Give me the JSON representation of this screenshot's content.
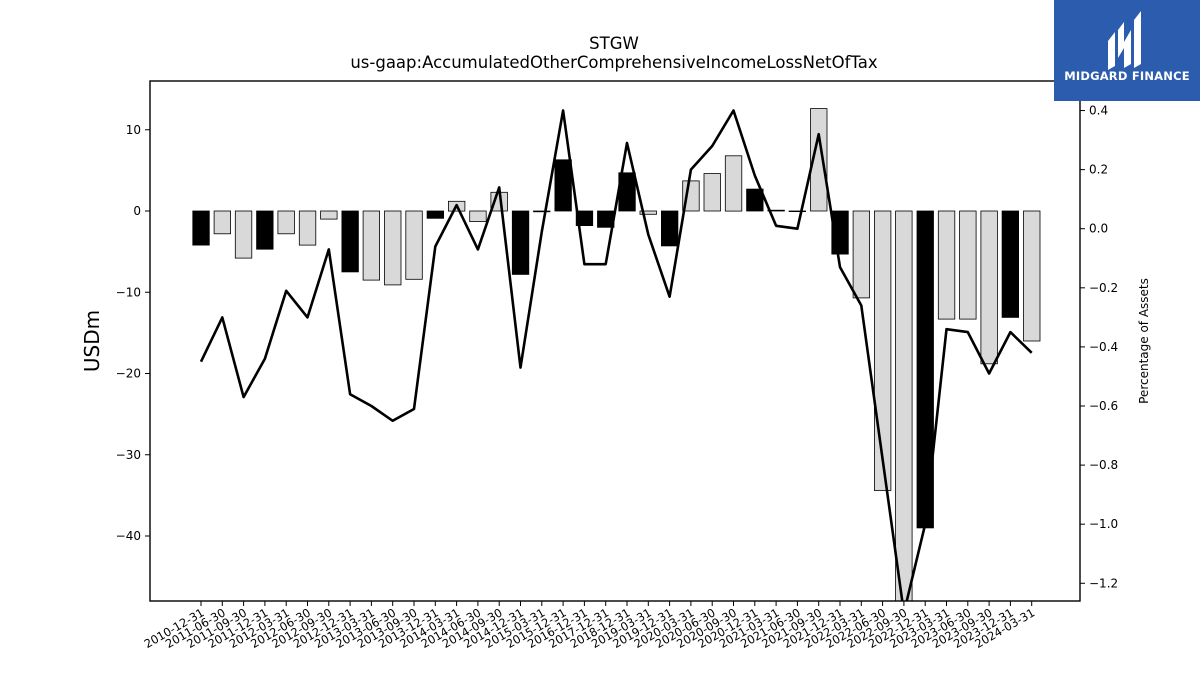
{
  "brand": {
    "name": "MIDGARD FINANCE",
    "background_color": "#2b5cad",
    "icon": "midgard-m-logo-icon"
  },
  "chart_data": {
    "type": "bar",
    "title": "STGW",
    "subtitle": "us-gaap:AccumulatedOtherComprehensiveIncomeLossNetOfTax",
    "ylabel": "USDm",
    "y2label": "Percentage of Assets",
    "ylim": [
      -48,
      16
    ],
    "y2lim": [
      -1.26,
      0.5
    ],
    "yticks": [
      10,
      0,
      -10,
      -20,
      -30,
      -40
    ],
    "y2ticks": [
      0.4,
      0.2,
      0.0,
      -0.2,
      -0.4,
      -0.6,
      -0.8,
      -1.0,
      -1.2
    ],
    "categories": [
      "2010-12-31",
      "2011-06-30",
      "2011-09-30",
      "2011-12-31",
      "2012-03-31",
      "2012-06-30",
      "2012-09-30",
      "2012-12-31",
      "2013-03-31",
      "2013-06-30",
      "2013-09-30",
      "2013-12-31",
      "2014-03-31",
      "2014-06-30",
      "2014-09-30",
      "2014-12-31",
      "2015-03-31",
      "2015-12-31",
      "2016-12-31",
      "2017-12-31",
      "2018-12-31",
      "2019-03-31",
      "2019-12-31",
      "2020-03-31",
      "2020-06-30",
      "2020-09-30",
      "2020-12-31",
      "2021-03-31",
      "2021-06-30",
      "2021-09-30",
      "2021-12-31",
      "2022-03-31",
      "2022-06-30",
      "2022-09-30",
      "2022-12-31",
      "2023-03-31",
      "2023-06-30",
      "2023-09-30",
      "2023-12-31",
      "2024-03-31"
    ],
    "series": [
      {
        "values": [
          -4.2,
          -2.8,
          -5.8,
          -4.7,
          -2.8,
          -4.2,
          -1.0,
          -7.5,
          -8.5,
          -9.1,
          -8.4,
          -0.9,
          1.2,
          -1.3,
          2.3,
          -7.8,
          -0.1,
          6.3,
          -1.8,
          -2.0,
          4.7,
          -0.4,
          -4.3,
          3.7,
          4.6,
          6.8,
          2.7,
          0.1,
          0.0,
          12.6,
          -5.3,
          -10.7,
          -34.4,
          -48.0,
          -39.0,
          -13.3,
          -13.3,
          -18.8,
          -13.1,
          -16.0
        ],
        "bar_colors": [
          "black",
          "lightgray",
          "lightgray",
          "black",
          "lightgray",
          "lightgray",
          "lightgray",
          "black",
          "lightgray",
          "lightgray",
          "lightgray",
          "black",
          "lightgray",
          "lightgray",
          "lightgray",
          "black",
          "black",
          "black",
          "black",
          "black",
          "black",
          "lightgray",
          "black",
          "lightgray",
          "lightgray",
          "lightgray",
          "black",
          "black",
          "black",
          "lightgray",
          "black",
          "lightgray",
          "lightgray",
          "lightgray",
          "black",
          "lightgray",
          "lightgray",
          "lightgray",
          "black",
          "lightgray"
        ]
      },
      {
        "axis": "right",
        "type": "line",
        "values": [
          -0.45,
          -0.3,
          -0.57,
          -0.44,
          -0.21,
          -0.3,
          -0.07,
          -0.56,
          -0.6,
          -0.65,
          -0.61,
          -0.06,
          0.08,
          -0.07,
          0.14,
          -0.47,
          -0.01,
          0.4,
          -0.12,
          -0.12,
          0.29,
          -0.02,
          -0.23,
          0.2,
          0.28,
          0.4,
          0.18,
          0.01,
          0.0,
          0.32,
          -0.13,
          -0.26,
          -0.78,
          -1.3,
          -1.0,
          -0.34,
          -0.35,
          -0.49,
          -0.35,
          -0.42
        ]
      }
    ]
  }
}
